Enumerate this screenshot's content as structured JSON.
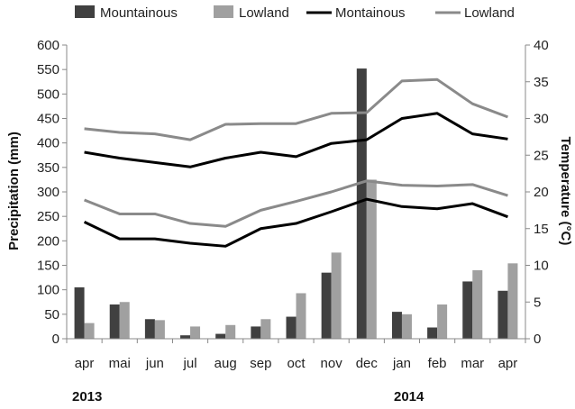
{
  "chart_data": {
    "type": "bar",
    "categories": [
      "apr",
      "mai",
      "jun",
      "jul",
      "aug",
      "sep",
      "oct",
      "nov",
      "dec",
      "jan",
      "feb",
      "mar",
      "apr"
    ],
    "year_labels": [
      "2013",
      "2014"
    ],
    "ylabel": "Precipitation (mm)",
    "ylabel_right": "Temperature (°C)",
    "ylim": [
      0,
      600
    ],
    "ylim_right": [
      0,
      40
    ],
    "yticks": [
      0,
      50,
      100,
      150,
      200,
      250,
      300,
      350,
      400,
      450,
      500,
      550,
      600
    ],
    "yticks_right": [
      0,
      5,
      10,
      15,
      20,
      25,
      30,
      35,
      40
    ],
    "legend_position": "top",
    "series": [
      {
        "name": "Mountainous",
        "kind": "bar",
        "axis": "left",
        "color": "#404040",
        "values": [
          105,
          70,
          40,
          7,
          10,
          25,
          45,
          135,
          552,
          55,
          23,
          117,
          98
        ]
      },
      {
        "name": "Lowland",
        "kind": "bar",
        "axis": "left",
        "color": "#a0a0a0",
        "values": [
          32,
          75,
          38,
          25,
          28,
          40,
          93,
          176,
          325,
          50,
          70,
          140,
          154
        ]
      },
      {
        "name": "Montainous",
        "kind": "line",
        "axis": "right",
        "group": "max",
        "color": "#000000",
        "values": [
          25.4,
          24.6,
          24.0,
          23.4,
          24.6,
          25.4,
          24.8,
          26.6,
          27.1,
          30.0,
          30.7,
          27.9,
          27.2
        ]
      },
      {
        "name": "Montainous",
        "kind": "line",
        "axis": "right",
        "group": "min",
        "color": "#000000",
        "values": [
          15.9,
          13.6,
          13.6,
          13.0,
          12.6,
          15.0,
          15.7,
          17.3,
          19.0,
          18.0,
          17.7,
          18.4,
          16.6
        ]
      },
      {
        "name": "Lowland",
        "kind": "line",
        "axis": "right",
        "group": "max",
        "color": "#8a8a8a",
        "values": [
          28.6,
          28.1,
          27.9,
          27.1,
          29.2,
          29.3,
          29.3,
          30.7,
          30.8,
          35.1,
          35.3,
          32.0,
          30.2
        ]
      },
      {
        "name": "Lowland",
        "kind": "line",
        "axis": "right",
        "group": "min",
        "color": "#8a8a8a",
        "values": [
          18.9,
          17.0,
          17.0,
          15.7,
          15.3,
          17.5,
          18.7,
          20.0,
          21.5,
          20.9,
          20.8,
          21.0,
          19.5
        ]
      }
    ],
    "legend": [
      {
        "label": "Mountainous",
        "marker": "box",
        "color": "#404040"
      },
      {
        "label": "Lowland",
        "marker": "box",
        "color": "#a0a0a0"
      },
      {
        "label": "Montainous",
        "marker": "line",
        "color": "#000000"
      },
      {
        "label": "Lowland",
        "marker": "line",
        "color": "#8a8a8a"
      }
    ]
  }
}
